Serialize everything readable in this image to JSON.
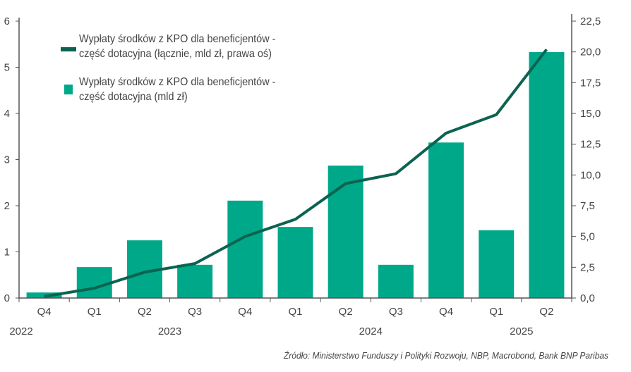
{
  "chart_data": {
    "type": "bar",
    "categories": [
      "Q4",
      "Q1",
      "Q2",
      "Q3",
      "Q4",
      "Q1",
      "Q2",
      "Q3",
      "Q4",
      "Q1",
      "Q2"
    ],
    "years": [
      {
        "label": "2022",
        "start": 0,
        "end": 0
      },
      {
        "label": "2023",
        "start": 1,
        "end": 4
      },
      {
        "label": "2024",
        "start": 5,
        "end": 8
      },
      {
        "label": "2025",
        "start": 9,
        "end": 10
      }
    ],
    "series": [
      {
        "name": "Wypłaty środków z KPO dla beneficjentów - część dotacyjna (mld zł)",
        "type": "bar",
        "axis": "left",
        "color": "#00a88a",
        "values": [
          0.12,
          0.67,
          1.25,
          0.72,
          2.11,
          1.54,
          2.87,
          0.72,
          3.37,
          1.47,
          5.33
        ]
      },
      {
        "name": "Wypłaty środków z KPO dla beneficjentów - część dotacyjna (łącznie, mld zł, prawa oś)",
        "type": "line",
        "axis": "right",
        "color": "#0b6350",
        "values": [
          0.12,
          0.8,
          2.1,
          2.8,
          5.0,
          6.4,
          9.3,
          10.1,
          13.4,
          14.9,
          20.2
        ]
      }
    ],
    "legend": {
      "line_lines": [
        "Wypłaty środków z KPO dla beneficjentów -",
        "część dotacyjna (łącznie, mld zł, prawa oś)"
      ],
      "bar_lines": [
        "Wypłaty środków z KPO dla beneficjentów -",
        "część dotacyjna (mld zł)"
      ],
      "placement": "top-left"
    },
    "yleft": {
      "ylim": [
        0,
        6
      ],
      "ticks": [
        "0",
        "1",
        "2",
        "3",
        "4",
        "5",
        "6"
      ]
    },
    "yright": {
      "ylim": [
        0,
        22.5
      ],
      "ticks": [
        "0,0",
        "2,5",
        "5,0",
        "7,5",
        "10,0",
        "12,5",
        "15,0",
        "17,5",
        "20,0",
        "22,5"
      ]
    },
    "grid": false,
    "source": "Źródło: Ministerstwo Funduszy i Polityki Rozwoju, NBP, Macrobond, Bank BNP Paribas"
  }
}
